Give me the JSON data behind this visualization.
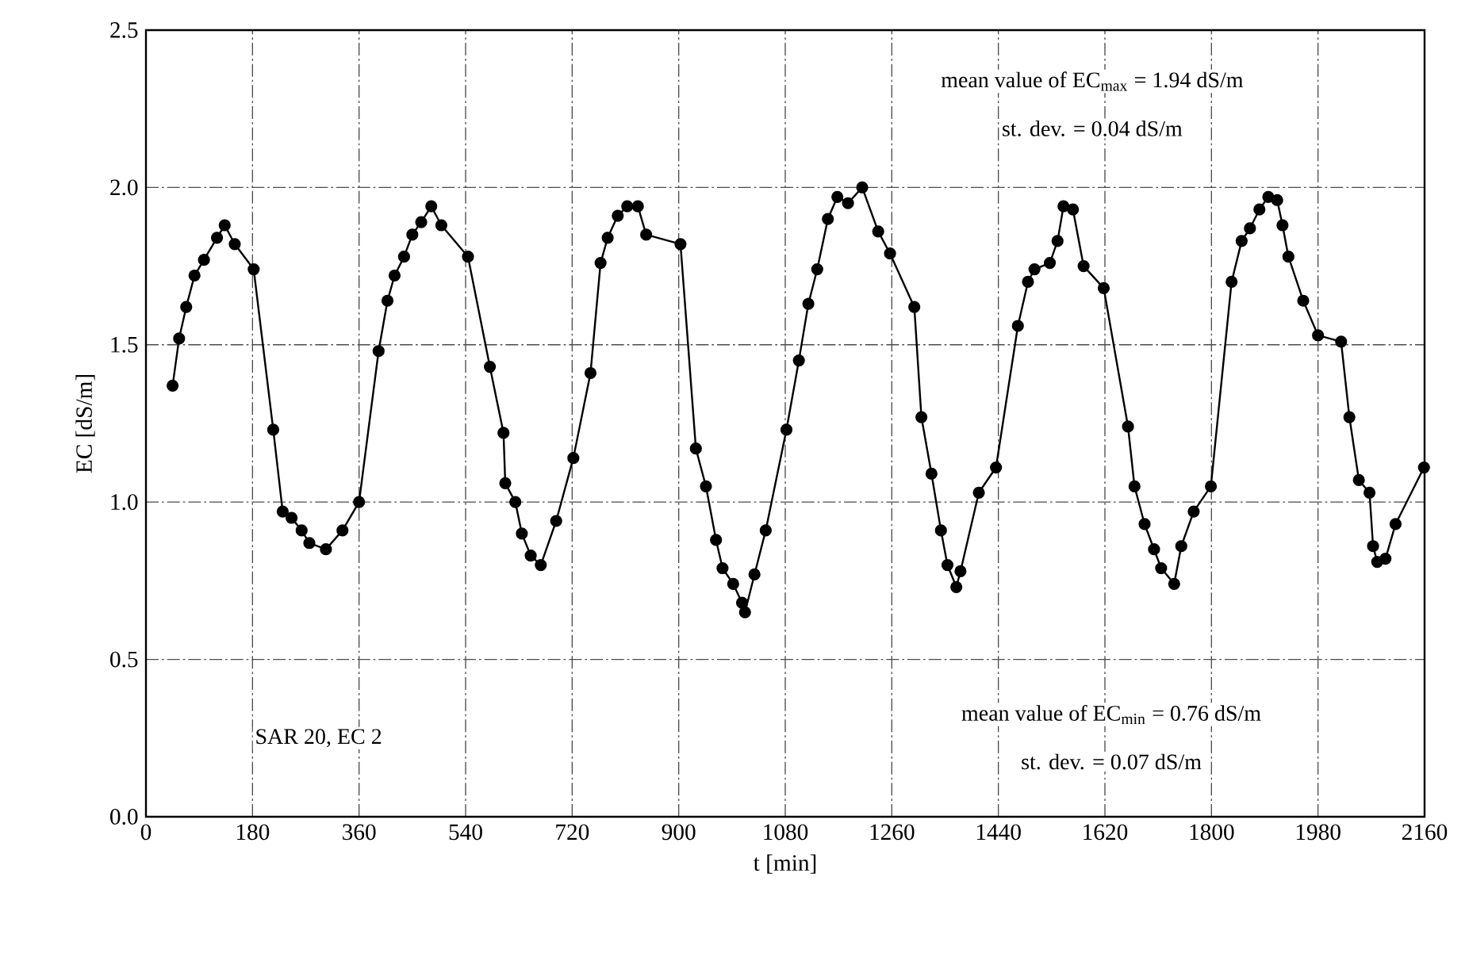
{
  "chart_data": {
    "type": "line",
    "xlabel": "t [min]",
    "ylabel": "EC [dS/m]",
    "x": [
      45,
      56,
      68,
      82,
      98,
      120,
      133,
      150,
      182,
      215,
      231,
      246,
      263,
      276,
      304,
      332,
      360,
      393,
      408,
      420,
      436,
      450,
      465,
      482,
      499,
      544,
      581,
      604,
      607,
      624,
      635,
      650,
      667,
      693,
      722,
      751,
      768,
      780,
      797,
      813,
      831,
      845,
      903,
      929,
      946,
      963,
      974,
      992,
      1007,
      1012,
      1028,
      1047,
      1082,
      1103,
      1119,
      1134,
      1152,
      1168,
      1186,
      1210,
      1237,
      1257,
      1298,
      1310,
      1327,
      1343,
      1354,
      1369,
      1376,
      1407,
      1436,
      1473,
      1490,
      1501,
      1527,
      1540,
      1550,
      1566,
      1584,
      1618,
      1659,
      1670,
      1687,
      1703,
      1715,
      1737,
      1749,
      1770,
      1799,
      1834,
      1851,
      1865,
      1881,
      1896,
      1911,
      1920,
      1930,
      1955,
      1980,
      2019,
      2033,
      2049,
      2067,
      2073,
      2080,
      2094,
      2111,
      2159
    ],
    "series": [
      {
        "color": "#000000",
        "values": [
          1.37,
          1.52,
          1.62,
          1.72,
          1.77,
          1.84,
          1.88,
          1.82,
          1.74,
          1.23,
          0.97,
          0.95,
          0.91,
          0.87,
          0.85,
          0.91,
          1.0,
          1.48,
          1.64,
          1.72,
          1.78,
          1.85,
          1.89,
          1.94,
          1.88,
          1.78,
          1.43,
          1.22,
          1.06,
          1.0,
          0.9,
          0.83,
          0.8,
          0.94,
          1.14,
          1.41,
          1.76,
          1.84,
          1.91,
          1.94,
          1.94,
          1.85,
          1.82,
          1.17,
          1.05,
          0.88,
          0.79,
          0.74,
          0.68,
          0.65,
          0.77,
          0.91,
          1.23,
          1.45,
          1.63,
          1.74,
          1.9,
          1.97,
          1.95,
          2.0,
          1.86,
          1.79,
          1.62,
          1.27,
          1.09,
          0.91,
          0.8,
          0.73,
          0.78,
          1.03,
          1.11,
          1.56,
          1.7,
          1.74,
          1.76,
          1.83,
          1.94,
          1.93,
          1.75,
          1.68,
          1.24,
          1.05,
          0.93,
          0.85,
          0.79,
          0.74,
          0.86,
          0.97,
          1.05,
          1.7,
          1.83,
          1.87,
          1.93,
          1.97,
          1.96,
          1.88,
          1.78,
          1.64,
          1.53,
          1.51,
          1.27,
          1.07,
          1.03,
          0.86,
          0.81,
          0.82,
          0.93,
          1.11
        ]
      }
    ],
    "xlim": [
      0,
      2160
    ],
    "ylim": [
      0,
      2.5
    ],
    "xticks": [
      0,
      180,
      360,
      540,
      720,
      900,
      1080,
      1260,
      1440,
      1620,
      1800,
      1980,
      2160
    ],
    "yticks": [
      {
        "value": 0,
        "label": "0.0"
      },
      {
        "value": 0.5,
        "label": "0.5"
      },
      {
        "value": 1,
        "label": "1.0"
      },
      {
        "value": 1.5,
        "label": "1.5"
      },
      {
        "value": 2,
        "label": "2.0"
      },
      {
        "value": 2.5,
        "label": "2.5"
      }
    ],
    "grid": true,
    "marker": "circle",
    "line_style": "solid",
    "annotations": [
      "mean value of EC$_{max}$ = 1.94 dS/m",
      "st. dev. = 0.04 dS/m",
      "mean value of EC$_{min}$ = 0.76 dS/m",
      "st. dev. = 0.07 dS/m",
      "SAR 20, EC 2"
    ]
  }
}
